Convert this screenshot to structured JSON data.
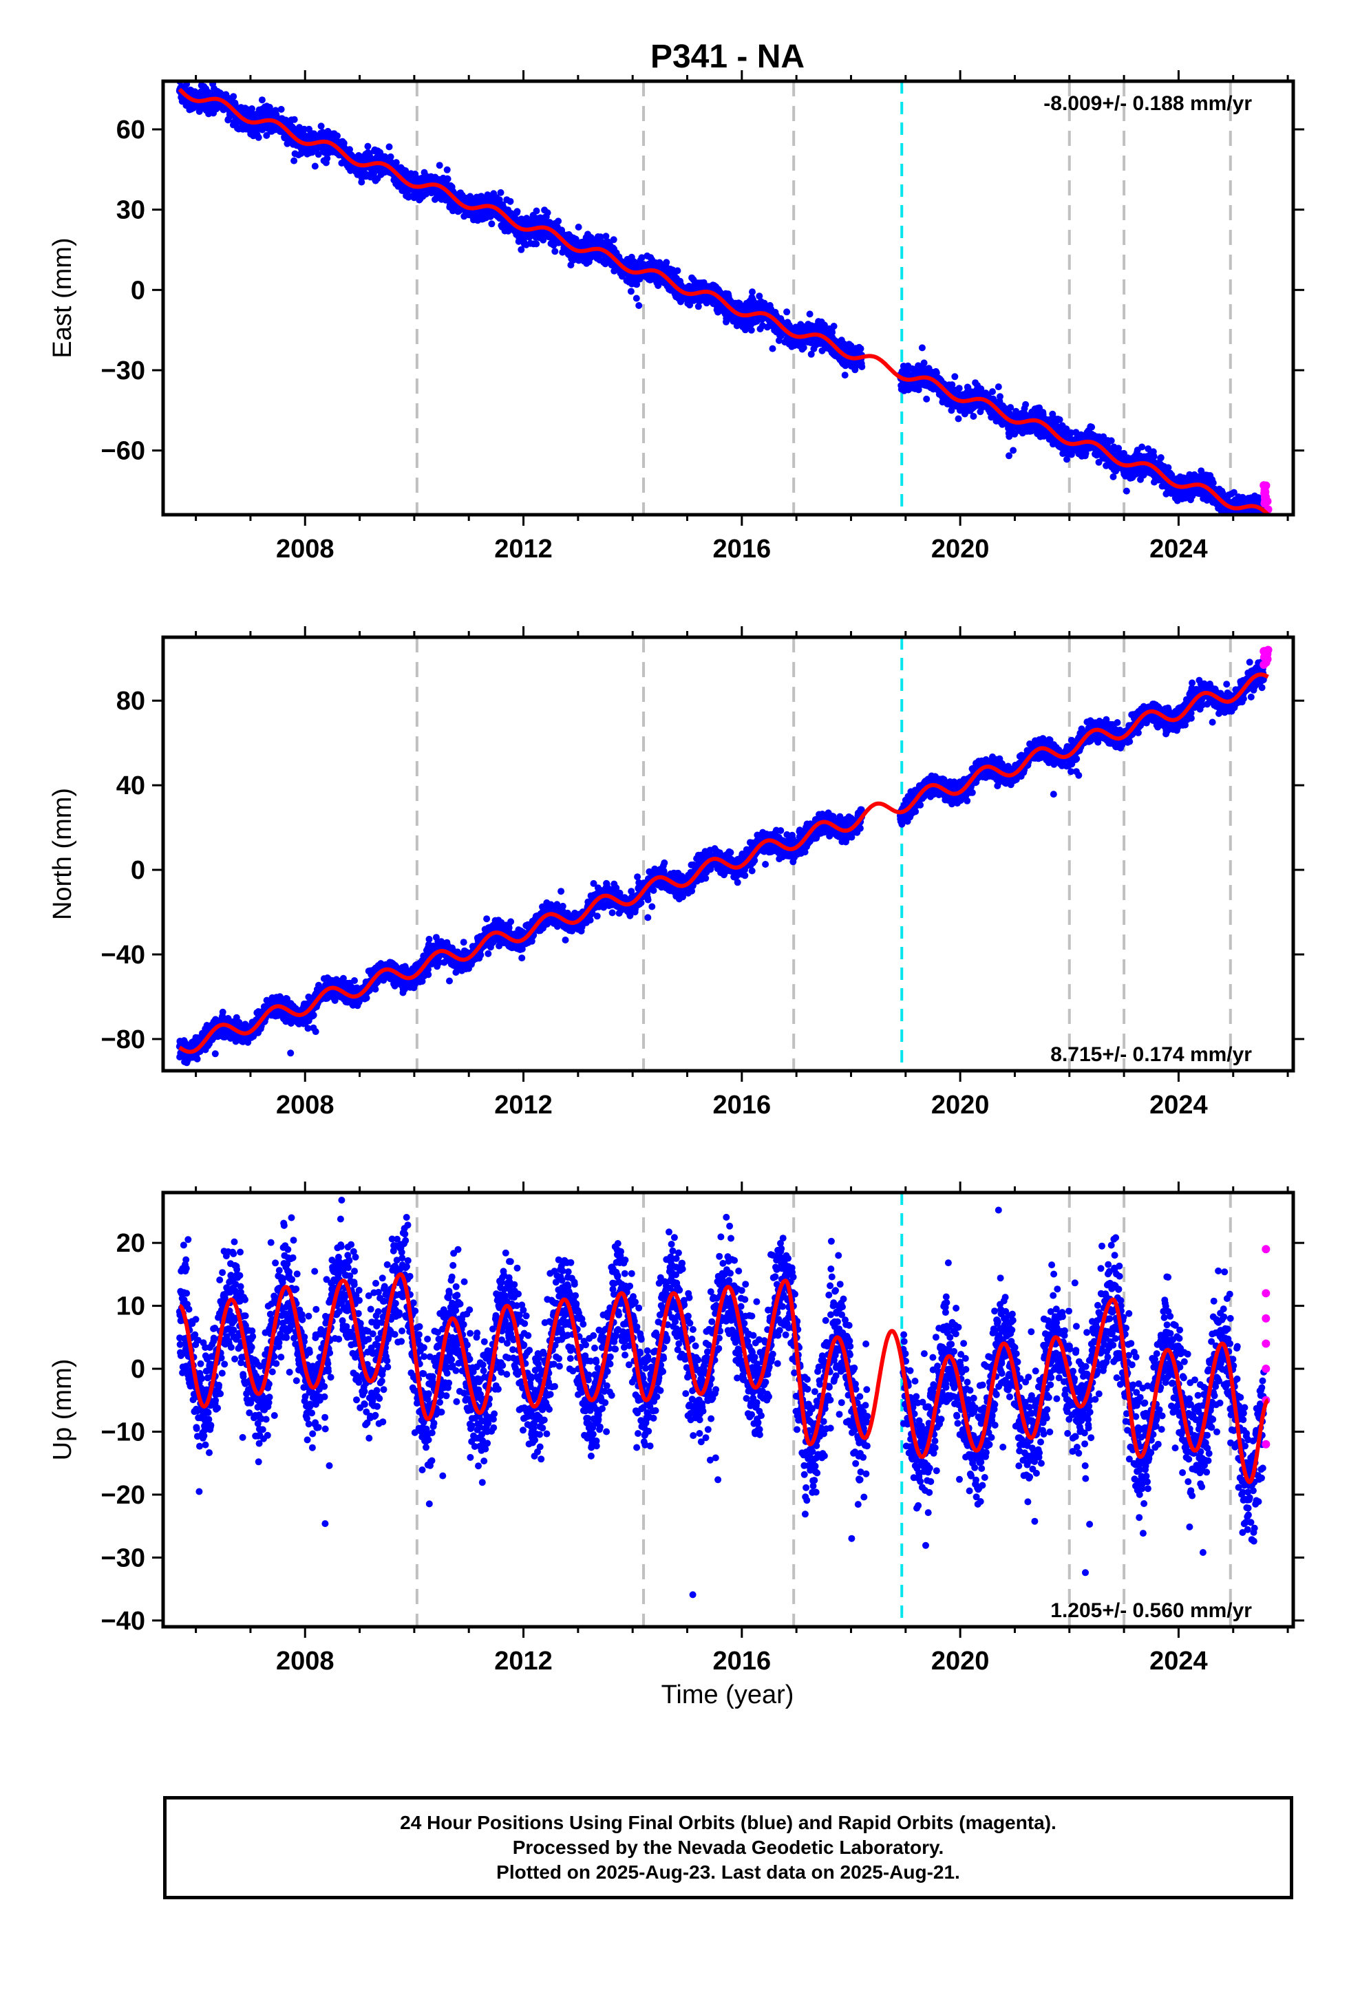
{
  "chart_data": [
    {
      "type": "scatter",
      "title": "P341 - NA",
      "ylabel": "East (mm)",
      "xlabel": "",
      "xlim": [
        2005.4,
        2026.1
      ],
      "ylim": [
        -84,
        78
      ],
      "xticks": [
        2008,
        2012,
        2016,
        2020,
        2024
      ],
      "yticks": [
        -60,
        -30,
        0,
        30,
        60
      ],
      "grid": false,
      "annotation": "-8.009+/- 0.188 mm/yr",
      "data_span": [
        2005.7,
        2025.64
      ],
      "rate_mm_per_yr": -8.009,
      "fit_value_at_2005_7": 75,
      "seasonal_amplitude_mm": 2,
      "scatter_mm": 2.2,
      "model_gap": [
        2018.2,
        2018.9
      ],
      "equipment_changes": [
        2010.05,
        2014.2,
        2016.95,
        2022.0,
        2023.0,
        2024.95
      ],
      "earthquake_lines": [
        2018.93
      ],
      "rapid_orbit_points": {
        "x": [
          2025.56,
          2025.64
        ],
        "y": [
          -73,
          -82
        ]
      },
      "colors": {
        "final": "#0000ff",
        "rapid": "#ff00ff",
        "model": "#ff0000",
        "equipment": "#c0c0c0",
        "earthquake": "#00e5ee"
      }
    },
    {
      "type": "scatter",
      "title": "",
      "ylabel": "North (mm)",
      "xlabel": "",
      "xlim": [
        2005.4,
        2026.1
      ],
      "ylim": [
        -95,
        110
      ],
      "xticks": [
        2008,
        2012,
        2016,
        2020,
        2024
      ],
      "yticks": [
        -80,
        -40,
        0,
        40,
        80
      ],
      "grid": false,
      "annotation": "8.715+/- 0.174 mm/yr",
      "data_span": [
        2005.7,
        2025.64
      ],
      "rate_mm_per_yr": 8.715,
      "fit_value_at_2005_7": -84,
      "seasonal_amplitude_mm": 4,
      "scatter_mm": 2.5,
      "model_gap": [
        2018.2,
        2018.9
      ],
      "equipment_changes": [
        2010.05,
        2014.2,
        2016.95,
        2022.0,
        2023.0,
        2024.95
      ],
      "earthquake_lines": [
        2018.93
      ],
      "rapid_orbit_points": {
        "x": [
          2025.56,
          2025.64
        ],
        "y": [
          97,
          104
        ]
      },
      "colors": {
        "final": "#0000ff",
        "rapid": "#ff00ff",
        "model": "#ff0000",
        "equipment": "#c0c0c0",
        "earthquake": "#00e5ee"
      }
    },
    {
      "type": "scatter",
      "title": "",
      "ylabel": "Up (mm)",
      "xlabel": "Time (year)",
      "xlim": [
        2005.4,
        2026.1
      ],
      "ylim": [
        -41,
        28
      ],
      "xticks": [
        2008,
        2012,
        2016,
        2020,
        2024
      ],
      "yticks": [
        -40,
        -30,
        -20,
        -10,
        0,
        10,
        20
      ],
      "grid": false,
      "annotation": "1.205+/- 0.560 mm/yr",
      "data_span": [
        2005.7,
        2025.64
      ],
      "rate_mm_per_yr": 1.205,
      "seasonal_peaks": [
        {
          "x": 2005.7,
          "y": 10
        },
        {
          "x": 2006.15,
          "y": -6
        },
        {
          "x": 2006.65,
          "y": 11
        },
        {
          "x": 2007.15,
          "y": -4
        },
        {
          "x": 2007.65,
          "y": 13
        },
        {
          "x": 2008.15,
          "y": -3
        },
        {
          "x": 2008.7,
          "y": 14
        },
        {
          "x": 2009.2,
          "y": -2
        },
        {
          "x": 2009.75,
          "y": 15
        },
        {
          "x": 2010.25,
          "y": -8
        },
        {
          "x": 2010.7,
          "y": 8
        },
        {
          "x": 2011.2,
          "y": -7
        },
        {
          "x": 2011.7,
          "y": 10
        },
        {
          "x": 2012.2,
          "y": -6
        },
        {
          "x": 2012.75,
          "y": 11
        },
        {
          "x": 2013.25,
          "y": -5
        },
        {
          "x": 2013.8,
          "y": 12
        },
        {
          "x": 2014.25,
          "y": -5
        },
        {
          "x": 2014.75,
          "y": 12
        },
        {
          "x": 2015.25,
          "y": -4
        },
        {
          "x": 2015.75,
          "y": 13
        },
        {
          "x": 2016.25,
          "y": -3
        },
        {
          "x": 2016.8,
          "y": 14
        },
        {
          "x": 2017.25,
          "y": -12
        },
        {
          "x": 2017.75,
          "y": 5
        },
        {
          "x": 2018.25,
          "y": -11
        },
        {
          "x": 2018.75,
          "y": 6
        },
        {
          "x": 2019.3,
          "y": -14
        },
        {
          "x": 2019.8,
          "y": 2
        },
        {
          "x": 2020.3,
          "y": -13
        },
        {
          "x": 2020.8,
          "y": 4
        },
        {
          "x": 2021.3,
          "y": -11
        },
        {
          "x": 2021.75,
          "y": 5
        },
        {
          "x": 2022.2,
          "y": -6
        },
        {
          "x": 2022.8,
          "y": 11
        },
        {
          "x": 2023.3,
          "y": -14
        },
        {
          "x": 2023.8,
          "y": 3
        },
        {
          "x": 2024.3,
          "y": -13
        },
        {
          "x": 2024.8,
          "y": 4
        },
        {
          "x": 2025.3,
          "y": -18
        },
        {
          "x": 2025.64,
          "y": -5
        }
      ],
      "scatter_mm": 4.5,
      "equipment_changes": [
        2010.05,
        2014.2,
        2016.95,
        2022.0,
        2023.0,
        2024.95
      ],
      "earthquake_lines": [
        2018.93
      ],
      "rapid_orbit_points": {
        "x": [
          2025.6,
          2025.6,
          2025.6,
          2025.6,
          2025.6,
          2025.6,
          2025.6
        ],
        "y": [
          19,
          12,
          8,
          4,
          0,
          -5,
          -12
        ]
      },
      "colors": {
        "final": "#0000ff",
        "rapid": "#ff00ff",
        "model": "#ff0000",
        "equipment": "#c0c0c0",
        "earthquake": "#00e5ee"
      }
    }
  ],
  "caption": {
    "line1": "24 Hour Positions Using Final Orbits (blue) and Rapid Orbits (magenta).",
    "line2": "Processed by the Nevada Geodetic Laboratory.",
    "line3": "Plotted on 2025-Aug-23. Last data on 2025-Aug-21."
  }
}
